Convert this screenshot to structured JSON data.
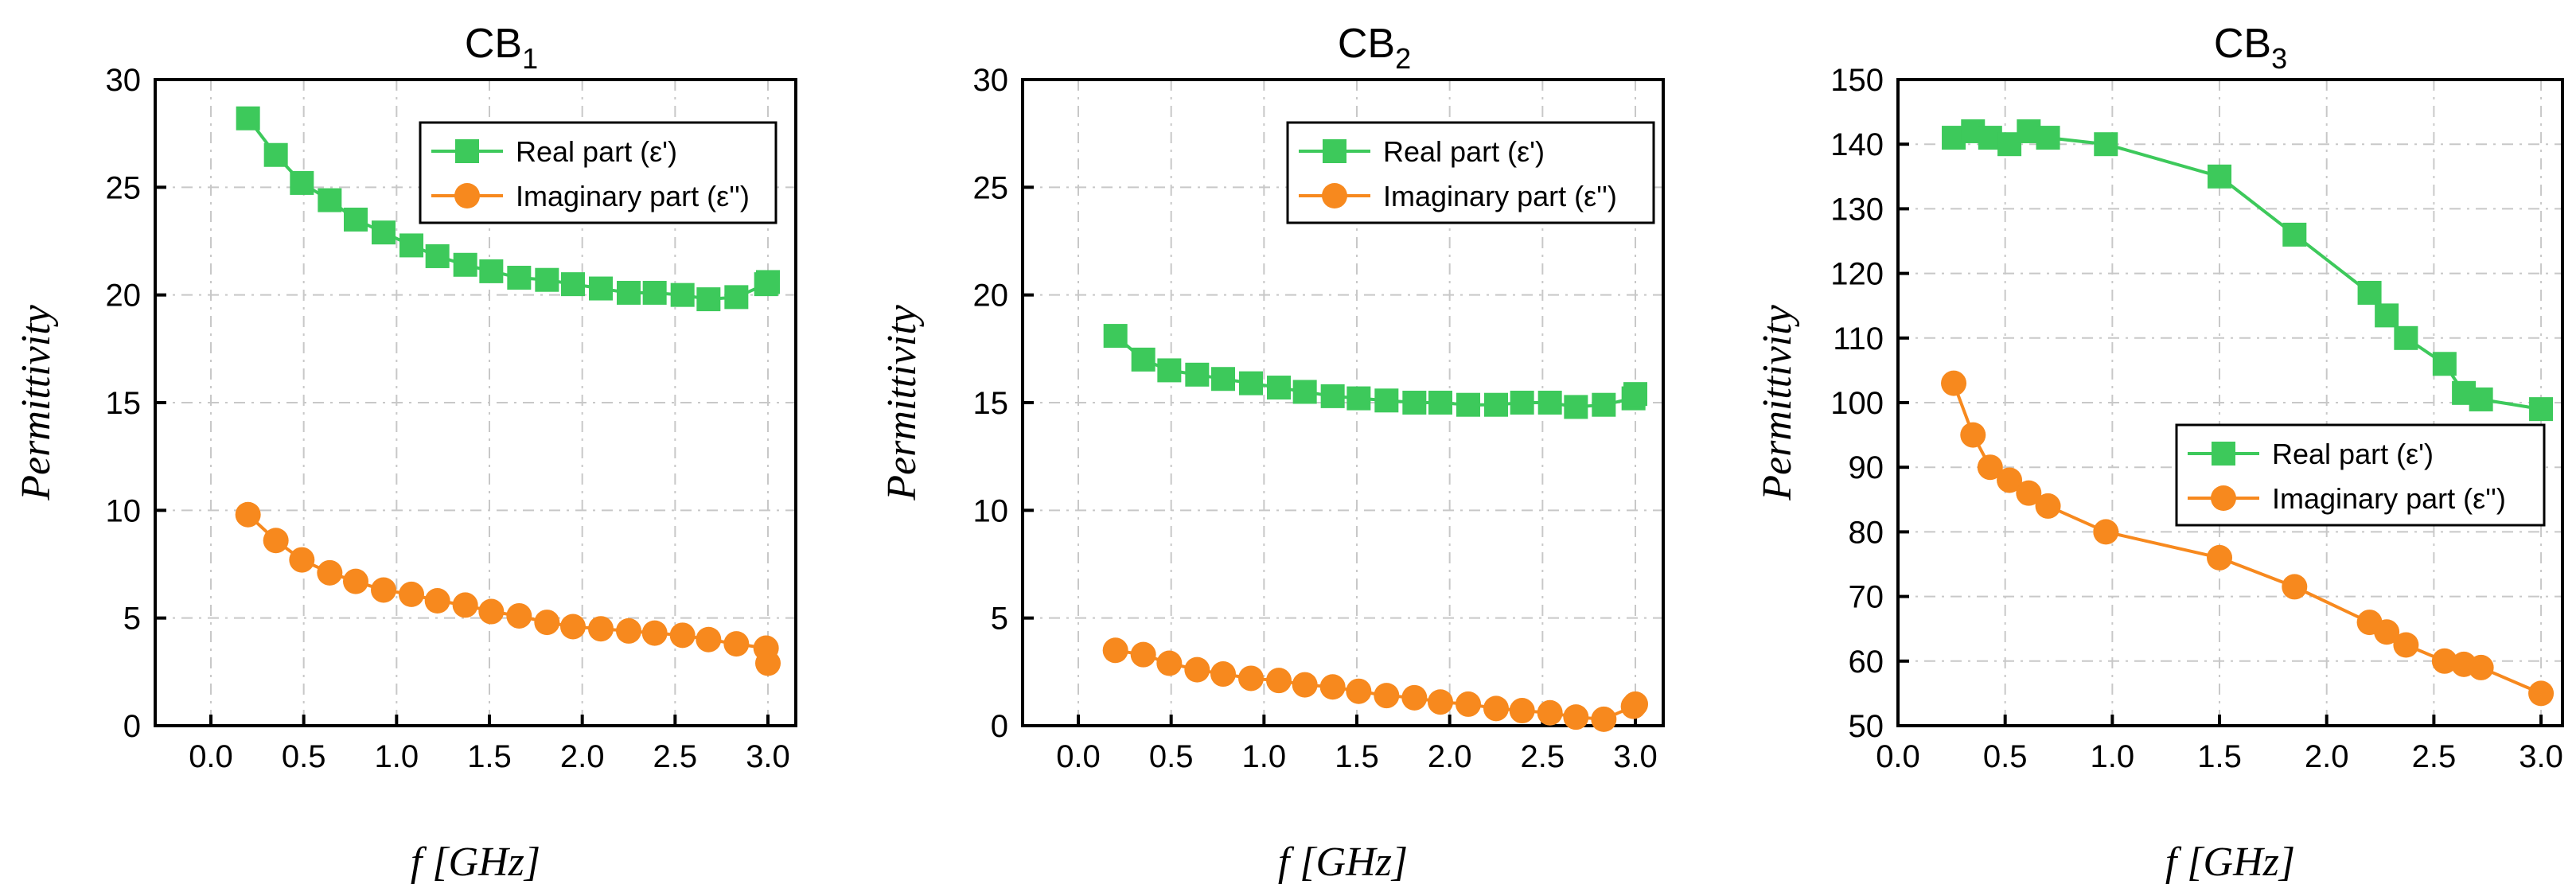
{
  "colors": {
    "real": "#3dc95b",
    "imag": "#f7891e",
    "frame": "#000000",
    "grid": "#c8c8c8"
  },
  "chart_data": [
    {
      "type": "line",
      "title": "CB",
      "title_subscript": "1",
      "xlabel": "f [GHz]",
      "ylabel": "Permittivity",
      "xlim": [
        -0.3,
        3.15
      ],
      "ylim": [
        0,
        30
      ],
      "xticks": [
        "0.0",
        "0.5",
        "1.0",
        "1.5",
        "2.0",
        "2.5",
        "3.0"
      ],
      "xtick_values": [
        0.0,
        0.5,
        1.0,
        1.5,
        2.0,
        2.5,
        3.0
      ],
      "yticks": [
        "0",
        "5",
        "10",
        "15",
        "20",
        "25",
        "30"
      ],
      "ytick_values": [
        0,
        5,
        10,
        15,
        20,
        25,
        30
      ],
      "grid": true,
      "legend_position": "top-right",
      "series": [
        {
          "name": "Real part (ε')",
          "marker": "square",
          "x": [
            0.2,
            0.35,
            0.49,
            0.64,
            0.78,
            0.93,
            1.08,
            1.22,
            1.37,
            1.51,
            1.66,
            1.81,
            1.95,
            2.1,
            2.25,
            2.39,
            2.54,
            2.68,
            2.83,
            2.99,
            3.0
          ],
          "y": [
            28.2,
            26.5,
            25.2,
            24.4,
            23.5,
            22.9,
            22.3,
            21.8,
            21.4,
            21.1,
            20.8,
            20.7,
            20.5,
            20.3,
            20.1,
            20.1,
            20.0,
            19.8,
            19.9,
            20.5,
            20.6
          ]
        },
        {
          "name": "Imaginary part (ε'')",
          "marker": "circle",
          "x": [
            0.2,
            0.35,
            0.49,
            0.64,
            0.78,
            0.93,
            1.08,
            1.22,
            1.37,
            1.51,
            1.66,
            1.81,
            1.95,
            2.1,
            2.25,
            2.39,
            2.54,
            2.68,
            2.83,
            2.99,
            3.0
          ],
          "y": [
            9.8,
            8.6,
            7.7,
            7.1,
            6.7,
            6.3,
            6.1,
            5.8,
            5.6,
            5.3,
            5.1,
            4.8,
            4.6,
            4.5,
            4.4,
            4.3,
            4.2,
            4.0,
            3.8,
            3.6,
            2.9
          ]
        }
      ]
    },
    {
      "type": "line",
      "title": "CB",
      "title_subscript": "2",
      "xlabel": "f [GHz]",
      "ylabel": "Permittivity",
      "xlim": [
        -0.3,
        3.15
      ],
      "ylim": [
        0,
        30
      ],
      "xticks": [
        "0.0",
        "0.5",
        "1.0",
        "1.5",
        "2.0",
        "2.5",
        "3.0"
      ],
      "xtick_values": [
        0.0,
        0.5,
        1.0,
        1.5,
        2.0,
        2.5,
        3.0
      ],
      "yticks": [
        "0",
        "5",
        "10",
        "15",
        "20",
        "25",
        "30"
      ],
      "ytick_values": [
        0,
        5,
        10,
        15,
        20,
        25,
        30
      ],
      "grid": true,
      "legend_position": "top-right",
      "series": [
        {
          "name": "Real part (ε')",
          "marker": "square",
          "x": [
            0.2,
            0.35,
            0.49,
            0.64,
            0.78,
            0.93,
            1.08,
            1.22,
            1.37,
            1.51,
            1.66,
            1.81,
            1.95,
            2.1,
            2.25,
            2.39,
            2.54,
            2.68,
            2.83,
            2.99,
            3.0
          ],
          "y": [
            18.1,
            17.0,
            16.5,
            16.3,
            16.1,
            15.9,
            15.7,
            15.5,
            15.3,
            15.2,
            15.1,
            15.0,
            15.0,
            14.9,
            14.9,
            15.0,
            15.0,
            14.8,
            14.9,
            15.2,
            15.4
          ]
        },
        {
          "name": "Imaginary part (ε'')",
          "marker": "circle",
          "x": [
            0.2,
            0.35,
            0.49,
            0.64,
            0.78,
            0.93,
            1.08,
            1.22,
            1.37,
            1.51,
            1.66,
            1.81,
            1.95,
            2.1,
            2.25,
            2.39,
            2.54,
            2.68,
            2.83,
            2.99,
            3.0
          ],
          "y": [
            3.5,
            3.3,
            2.9,
            2.6,
            2.4,
            2.2,
            2.1,
            1.9,
            1.8,
            1.6,
            1.4,
            1.3,
            1.1,
            1.0,
            0.8,
            0.7,
            0.6,
            0.4,
            0.3,
            0.9,
            1.0
          ]
        }
      ]
    },
    {
      "type": "line",
      "title": "CB",
      "title_subscript": "3",
      "xlabel": "f [GHz]",
      "ylabel": "Permittivity",
      "xlim": [
        0.0,
        3.1
      ],
      "ylim": [
        50,
        150
      ],
      "xticks": [
        "0.0",
        "0.5",
        "1.0",
        "1.5",
        "2.0",
        "2.5",
        "3.0"
      ],
      "xtick_values": [
        0.0,
        0.5,
        1.0,
        1.5,
        2.0,
        2.5,
        3.0
      ],
      "yticks": [
        "50",
        "60",
        "70",
        "80",
        "90",
        "100",
        "110",
        "120",
        "130",
        "140",
        "150"
      ],
      "ytick_values": [
        50,
        60,
        70,
        80,
        90,
        100,
        110,
        120,
        130,
        140,
        150
      ],
      "grid": true,
      "legend_position": "center-right",
      "series": [
        {
          "name": "Real part (ε')",
          "marker": "square",
          "x": [
            0.26,
            0.35,
            0.43,
            0.52,
            0.61,
            0.7,
            0.97,
            1.5,
            1.85,
            2.2,
            2.28,
            2.37,
            2.55,
            2.64,
            2.72,
            3.0
          ],
          "y": [
            141,
            142,
            141,
            140,
            142,
            141,
            140,
            135,
            126,
            117,
            113.5,
            110,
            106,
            101.5,
            100.5,
            99
          ]
        },
        {
          "name": "Imaginary part (ε'')",
          "marker": "circle",
          "x": [
            0.26,
            0.35,
            0.43,
            0.52,
            0.61,
            0.7,
            0.97,
            1.5,
            1.85,
            2.2,
            2.28,
            2.37,
            2.55,
            2.64,
            2.72,
            3.0
          ],
          "y": [
            103,
            95,
            90,
            88,
            86,
            84,
            80,
            76,
            71.5,
            66,
            64.5,
            62.5,
            60,
            59.5,
            59,
            55
          ]
        }
      ]
    }
  ]
}
